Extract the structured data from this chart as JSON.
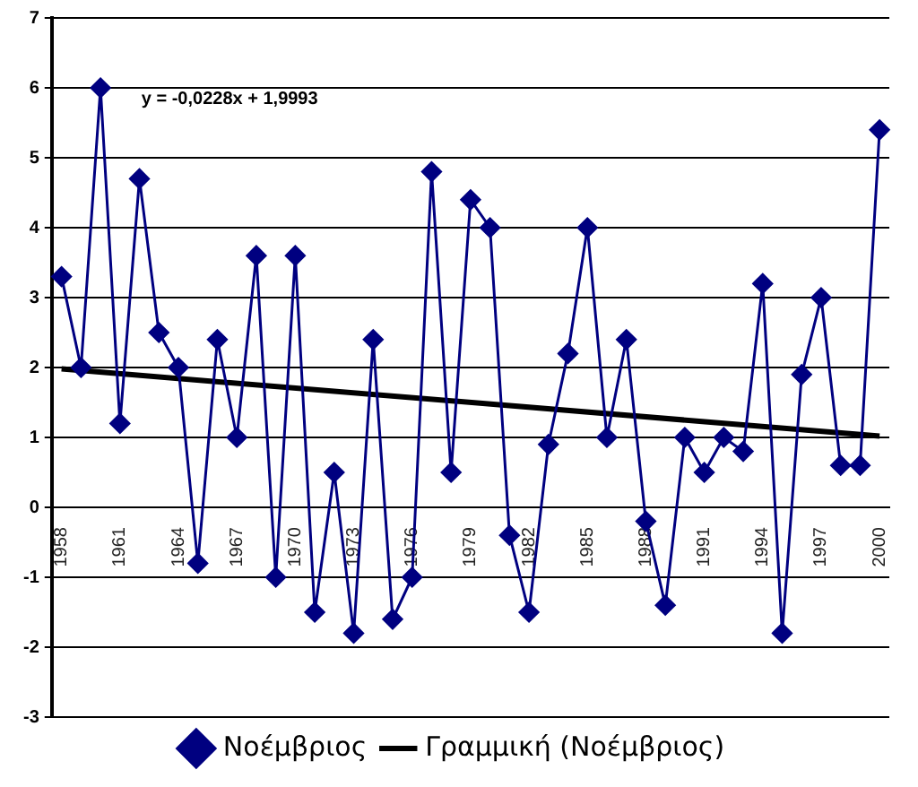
{
  "chart_data": {
    "type": "line",
    "categories": [
      "1958",
      null,
      null,
      "1961",
      null,
      null,
      "1964",
      null,
      null,
      "1967",
      null,
      null,
      "1970",
      null,
      null,
      "1973",
      null,
      null,
      "1976",
      null,
      null,
      "1979",
      null,
      null,
      "1982",
      null,
      null,
      "1985",
      null,
      null,
      "1988",
      null,
      null,
      "1991",
      null,
      null,
      "1994",
      null,
      null,
      "1997",
      null,
      null,
      "2000"
    ],
    "series": [
      {
        "name": "Νοέμβριος",
        "color": "#000080",
        "marker": "diamond",
        "values": [
          3.3,
          2.0,
          6.0,
          1.2,
          4.7,
          2.5,
          2.0,
          -0.8,
          2.4,
          1.0,
          3.6,
          -1.0,
          3.6,
          -1.5,
          0.5,
          -1.8,
          2.4,
          -1.6,
          -1.0,
          4.8,
          0.5,
          4.4,
          4.0,
          -0.4,
          -1.5,
          0.9,
          2.2,
          4.0,
          1.0,
          2.4,
          -0.2,
          -1.4,
          1.0,
          0.5,
          1.0,
          0.8,
          3.2,
          -1.8,
          1.9,
          3.0,
          0.6,
          0.6,
          5.4
        ]
      },
      {
        "name": "Γραμμική (Νοέμβριος)",
        "type": "line",
        "color": "#000000",
        "marker": "none",
        "values": [
          1.98,
          null,
          null,
          null,
          null,
          null,
          null,
          null,
          null,
          null,
          null,
          null,
          null,
          null,
          null,
          null,
          null,
          null,
          null,
          null,
          null,
          null,
          null,
          null,
          null,
          null,
          null,
          null,
          null,
          null,
          null,
          null,
          null,
          null,
          null,
          null,
          null,
          null,
          null,
          null,
          null,
          null,
          1.02
        ]
      }
    ],
    "ylim": [
      -3,
      7
    ],
    "yticks": [
      -3,
      -2,
      -1,
      0,
      1,
      2,
      3,
      4,
      5,
      6,
      7
    ],
    "grid": "y",
    "legend": "bottom",
    "annotations": [
      "y = -0,0228x + 1,9993"
    ]
  }
}
